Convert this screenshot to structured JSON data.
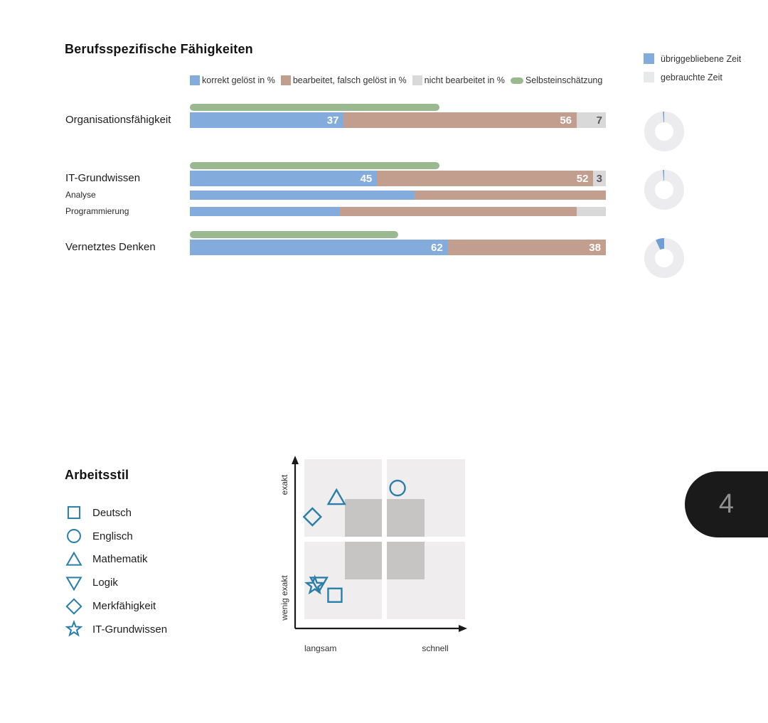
{
  "page": {
    "number": "4"
  },
  "skills": {
    "title": "Berufsspezifische Fähigkeiten",
    "bar_legend": [
      {
        "label": "korrekt gelöst in %",
        "color": "#83abdb",
        "swatch": "square"
      },
      {
        "label": "bearbeitet, falsch gelöst in %",
        "color": "#c29e8f",
        "swatch": "square"
      },
      {
        "label": "nicht bearbeitet in %",
        "color": "#d9d9d9",
        "swatch": "square"
      },
      {
        "label": "Selbsteinschätzung",
        "color": "#9bb991",
        "swatch": "pill"
      }
    ],
    "time_legend": [
      {
        "label": "übriggebliebene Zeit",
        "color": "#83abdb"
      },
      {
        "label": "gebrauchte Zeit",
        "color": "#e8e9eb"
      }
    ]
  },
  "arbeitsstil": {
    "title": "Arbeitsstil",
    "axis": {
      "top": "exakt",
      "bottom": "wenig exakt",
      "left": "langsam",
      "right": "schnell"
    }
  },
  "colors": {
    "korrekt": "#83abdb",
    "falsch": "#c29e8f",
    "nicht": "#d9d9d9",
    "selbst": "#9bb991",
    "donut_bg": "#ececef",
    "donut_value": "#6e9ed3",
    "marker": "#2a7fa9",
    "quadrant": "#efeded",
    "quadrant_inner": "#c6c5c4",
    "axis": "#1a1a1a",
    "page_tab_bg": "#1a1a1a",
    "page_tab_text": "#8f8f8f"
  },
  "chart_data": [
    {
      "type": "bar",
      "title": "Berufsspezifische Fähigkeiten",
      "orientation": "horizontal-stacked",
      "xlim": [
        0,
        100
      ],
      "legend": [
        "korrekt gelöst in %",
        "bearbeitet, falsch gelöst in %",
        "nicht bearbeitet in %",
        "Selbsteinschätzung"
      ],
      "rows": [
        {
          "label": "Organisationsfähigkeit",
          "kind": "main",
          "korrekt": 37,
          "falsch": 56,
          "nicht": 7,
          "selbsteinschaetzung": 60,
          "zeit_uebrig_pct": 1
        },
        {
          "label": "IT-Grundwissen",
          "kind": "main",
          "korrekt": 45,
          "falsch": 52,
          "nicht": 3,
          "selbsteinschaetzung": 60,
          "zeit_uebrig_pct": 1
        },
        {
          "label": "Analyse",
          "kind": "sub",
          "korrekt": 54,
          "falsch": 46,
          "nicht": 0
        },
        {
          "label": "Programmierung",
          "kind": "sub",
          "korrekt": 36,
          "falsch": 57,
          "nicht": 7
        },
        {
          "label": "Vernetztes Denken",
          "kind": "main",
          "korrekt": 62,
          "falsch": 38,
          "nicht": 0,
          "selbsteinschaetzung": 50,
          "zeit_uebrig_pct": 7
        }
      ]
    },
    {
      "type": "scatter",
      "title": "Arbeitsstil",
      "x_axis": {
        "left_label": "langsam",
        "right_label": "schnell"
      },
      "y_axis": {
        "top_label": "exakt",
        "bottom_label": "wenig exakt"
      },
      "points": [
        {
          "label": "Deutsch",
          "shape": "square",
          "x": 0.19,
          "y": 0.15
        },
        {
          "label": "Englisch",
          "shape": "circle",
          "x": 0.58,
          "y": 0.82
        },
        {
          "label": "Mathematik",
          "shape": "triangle-up",
          "x": 0.2,
          "y": 0.76
        },
        {
          "label": "Logik",
          "shape": "triangle-down",
          "x": 0.09,
          "y": 0.22
        },
        {
          "label": "Merkfähigkeit",
          "shape": "diamond",
          "x": 0.05,
          "y": 0.64
        },
        {
          "label": "IT-Grundwissen",
          "shape": "star",
          "x": 0.065,
          "y": 0.21
        }
      ]
    }
  ]
}
